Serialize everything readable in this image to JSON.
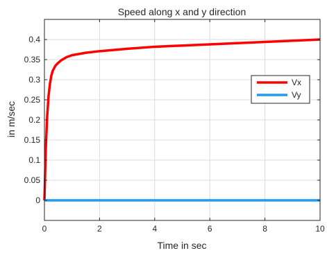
{
  "chart_data": {
    "type": "line",
    "title": "Speed along x and y direction",
    "xlabel": "Time in sec",
    "ylabel": "in m/sec",
    "xlim": [
      0,
      10
    ],
    "ylim": [
      -0.05,
      0.45
    ],
    "xticks": [
      0,
      2,
      4,
      6,
      8,
      10
    ],
    "yticks": [
      0,
      0.05,
      0.1,
      0.15,
      0.2,
      0.25,
      0.3,
      0.35,
      0.4
    ],
    "ytick_labels": [
      "0",
      "0.05",
      "0.1",
      "0.15",
      "0.2",
      "0.25",
      "0.3",
      "0.35",
      "0.4"
    ],
    "grid": true,
    "legend": "right",
    "series": [
      {
        "name": "Vx",
        "color": "#ff0000",
        "x": [
          0,
          0.05,
          0.1,
          0.15,
          0.2,
          0.25,
          0.3,
          0.4,
          0.5,
          0.6,
          0.8,
          1,
          1.5,
          2,
          3,
          4,
          5,
          6,
          7,
          8,
          9,
          10
        ],
        "y": [
          0,
          0.13,
          0.21,
          0.26,
          0.29,
          0.31,
          0.322,
          0.335,
          0.342,
          0.348,
          0.356,
          0.361,
          0.367,
          0.371,
          0.377,
          0.382,
          0.385,
          0.388,
          0.391,
          0.394,
          0.397,
          0.4
        ]
      },
      {
        "name": "Vy",
        "color": "#1e9bf0",
        "x": [
          0,
          10
        ],
        "y": [
          0,
          0
        ]
      }
    ]
  }
}
